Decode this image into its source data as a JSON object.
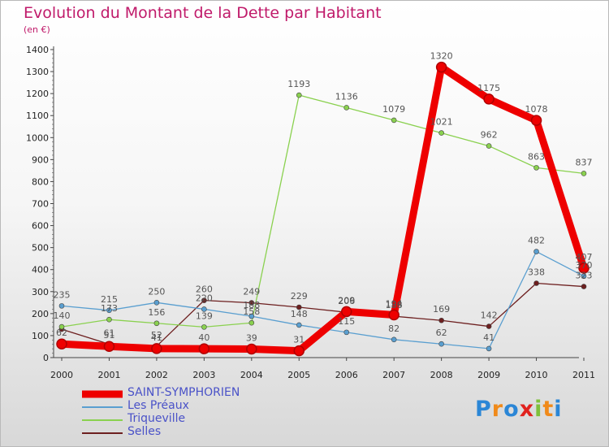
{
  "title": "Evolution du Montant de la Dette par Habitant",
  "subtitle": "(en €)",
  "logo_text": "Proxiti",
  "chart_data": {
    "type": "line",
    "x": [
      "2000",
      "2001",
      "2002",
      "2003",
      "2004",
      "2005",
      "2006",
      "2007",
      "2008",
      "2009",
      "2010",
      "2011"
    ],
    "ylim": [
      0,
      1400
    ],
    "yticks": [
      "0",
      "100",
      "200",
      "300",
      "400",
      "500",
      "600",
      "700",
      "800",
      "900",
      "1000",
      "1100",
      "1200",
      "1300",
      "1400"
    ],
    "grid": false,
    "legend_position": "bottom-left",
    "series": [
      {
        "name": "SAINT-SYMPHORIEN",
        "color": "#ee0000",
        "values": [
          62,
          51,
          41,
          40,
          39,
          31,
          209,
          194,
          1320,
          1175,
          1078,
          407
        ],
        "labels": [
          "62",
          "51",
          "41",
          "40",
          "39",
          "31",
          "209",
          "194",
          "1320",
          "1175",
          "1078",
          "407"
        ]
      },
      {
        "name": "Les Préaux",
        "color": "#5a9fd0",
        "values": [
          235,
          215,
          250,
          220,
          188,
          148,
          115,
          82,
          62,
          41,
          482,
          370
        ],
        "labels": [
          "235",
          "215",
          "250",
          "220",
          "188",
          "148",
          "115",
          "82",
          "62",
          "41",
          "482",
          "370"
        ]
      },
      {
        "name": "Triqueville",
        "color": "#8ad14f",
        "values": [
          140,
          173,
          156,
          139,
          158,
          1193,
          1136,
          1079,
          1021,
          962,
          863,
          837
        ],
        "labels": [
          "140",
          "173",
          "156",
          "139",
          "158",
          "1193",
          "1136",
          "1079",
          "1021",
          "962",
          "863",
          "837"
        ]
      },
      {
        "name": "Selles",
        "color": "#6d1f1f",
        "values": [
          129,
          61,
          52,
          260,
          249,
          229,
          206,
          188,
          169,
          142,
          338,
          323
        ],
        "labels": [
          "",
          "61",
          "52",
          "260",
          "249",
          "229",
          "206",
          "188",
          "169",
          "142",
          "338",
          "323"
        ]
      }
    ]
  }
}
